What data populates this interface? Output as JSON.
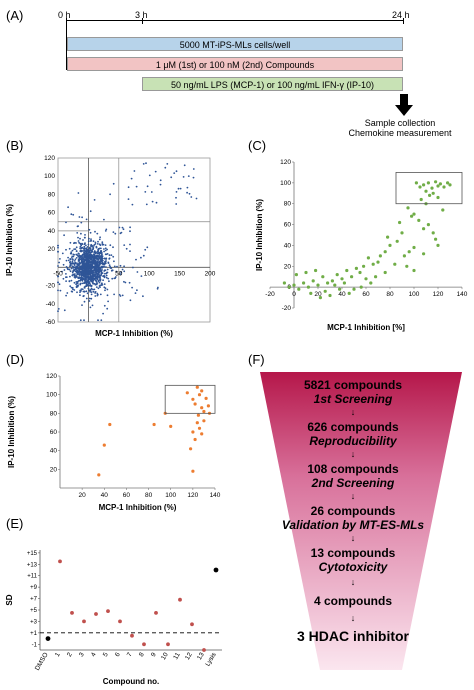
{
  "panels": {
    "A": "(A)",
    "B": "(B)",
    "C": "(C)",
    "D": "(D)",
    "E": "(E)",
    "F": "(F)"
  },
  "timeline": {
    "times": [
      "0 h",
      "3 h",
      "24 h"
    ],
    "bars": [
      {
        "label": "5000 MT-iPS-MLs cells/well",
        "color": "#b7d3ea"
      },
      {
        "label": "1 μM (1st) or 100 nM (2nd) Compounds",
        "color": "#f2c4c4"
      },
      {
        "label": "50 ng/mL LPS (MCP-1) or 100 ng/mL IFN-γ (IP-10)",
        "color": "#c8e2b5"
      }
    ],
    "sample_label_1": "Sample collection",
    "sample_label_2": "Chemokine measurement"
  },
  "chart_data": [
    {
      "panel": "B",
      "type": "scatter",
      "xlabel": "MCP-1 Inhibition (%)",
      "ylabel": "IP-10 Inhibition (%)",
      "xlim": [
        -50,
        200
      ],
      "ylim": [
        -60,
        120
      ],
      "xticks": [
        "-50",
        "50",
        "100",
        "150",
        "200"
      ],
      "yticks": [
        "-60",
        "-40",
        "-20",
        "20",
        "40",
        "60",
        "80",
        "100",
        "120"
      ],
      "color": "#2f5597",
      "note": "dense cloud of ~5821 points centered near (0, 0)"
    },
    {
      "panel": "C",
      "type": "scatter",
      "xlabel": "MCP-1 Inhibition [%]",
      "ylabel": "IP-10 Inhibition (%)",
      "xlim": [
        -20,
        140
      ],
      "ylim": [
        -20,
        120
      ],
      "xticks": [
        "-20",
        "0",
        "20",
        "40",
        "60",
        "80",
        "100",
        "120",
        "140"
      ],
      "yticks": [
        "-20",
        "0",
        "20",
        "40",
        "60",
        "80",
        "100",
        "120"
      ],
      "color": "#70ad47",
      "points": [
        [
          102,
          100
        ],
        [
          105,
          96
        ],
        [
          108,
          98
        ],
        [
          110,
          92
        ],
        [
          112,
          100
        ],
        [
          115,
          95
        ],
        [
          118,
          101
        ],
        [
          120,
          97
        ],
        [
          122,
          99
        ],
        [
          125,
          96
        ],
        [
          128,
          100
        ],
        [
          130,
          98
        ],
        [
          106,
          84
        ],
        [
          110,
          80
        ],
        [
          113,
          88
        ],
        [
          116,
          90
        ],
        [
          120,
          86
        ],
        [
          124,
          74
        ],
        [
          95,
          76
        ],
        [
          98,
          68
        ],
        [
          100,
          70
        ],
        [
          104,
          64
        ],
        [
          108,
          56
        ],
        [
          112,
          60
        ],
        [
          116,
          52
        ],
        [
          118,
          46
        ],
        [
          120,
          40
        ],
        [
          90,
          52
        ],
        [
          86,
          44
        ],
        [
          80,
          40
        ],
        [
          76,
          34
        ],
        [
          72,
          30
        ],
        [
          70,
          24
        ],
        [
          66,
          22
        ],
        [
          62,
          28
        ],
        [
          58,
          20
        ],
        [
          55,
          14
        ],
        [
          52,
          18
        ],
        [
          48,
          10
        ],
        [
          44,
          16
        ],
        [
          40,
          8
        ],
        [
          36,
          12
        ],
        [
          32,
          6
        ],
        [
          28,
          4
        ],
        [
          24,
          10
        ],
        [
          20,
          2
        ],
        [
          16,
          6
        ],
        [
          12,
          0
        ],
        [
          8,
          4
        ],
        [
          4,
          -2
        ],
        [
          0,
          2
        ],
        [
          -4,
          0
        ],
        [
          -8,
          4
        ],
        [
          2,
          12
        ],
        [
          10,
          14
        ],
        [
          18,
          16
        ],
        [
          26,
          -4
        ],
        [
          34,
          2
        ],
        [
          42,
          4
        ],
        [
          50,
          -2
        ],
        [
          60,
          8
        ],
        [
          68,
          10
        ],
        [
          76,
          14
        ],
        [
          84,
          22
        ],
        [
          92,
          30
        ],
        [
          96,
          34
        ],
        [
          100,
          38
        ],
        [
          78,
          48
        ],
        [
          88,
          62
        ],
        [
          94,
          20
        ],
        [
          100,
          16
        ],
        [
          108,
          32
        ],
        [
          64,
          4
        ],
        [
          56,
          0
        ],
        [
          46,
          -6
        ],
        [
          38,
          -2
        ],
        [
          30,
          -8
        ],
        [
          22,
          -10
        ],
        [
          14,
          -6
        ]
      ],
      "highlight_box": {
        "xlim": [
          85,
          140
        ],
        "ylim": [
          80,
          110
        ]
      }
    },
    {
      "panel": "D",
      "type": "scatter",
      "xlabel": "MCP-1 Inhibition (%)",
      "ylabel": "IP-10 Inhibition (%)",
      "xlim": [
        0,
        140
      ],
      "ylim": [
        0,
        120
      ],
      "xticks": [
        "20",
        "40",
        "60",
        "80",
        "100",
        "120",
        "140"
      ],
      "yticks": [
        "20",
        "40",
        "60",
        "80",
        "100",
        "120"
      ],
      "color": "#ed7d31",
      "points": [
        [
          35,
          14
        ],
        [
          40,
          46
        ],
        [
          45,
          68
        ],
        [
          85,
          68
        ],
        [
          95,
          80
        ],
        [
          100,
          66
        ],
        [
          115,
          102
        ],
        [
          120,
          95
        ],
        [
          122,
          90
        ],
        [
          124,
          108
        ],
        [
          126,
          100
        ],
        [
          128,
          86
        ],
        [
          130,
          82
        ],
        [
          132,
          96
        ],
        [
          134,
          88
        ],
        [
          120,
          60
        ],
        [
          122,
          52
        ],
        [
          124,
          70
        ],
        [
          126,
          64
        ],
        [
          128,
          58
        ],
        [
          130,
          72
        ],
        [
          118,
          42
        ],
        [
          120,
          18
        ],
        [
          125,
          78
        ],
        [
          135,
          80
        ],
        [
          128,
          104
        ]
      ],
      "highlight_box": {
        "xlim": [
          95,
          140
        ],
        "ylim": [
          80,
          110
        ]
      }
    },
    {
      "panel": "E",
      "type": "scatter",
      "xlabel": "Compound no.",
      "ylabel": "SD",
      "categories": [
        "DMSO",
        "1",
        "2",
        "3",
        "4",
        "5",
        "6",
        "7",
        "8",
        "9",
        "10",
        "11",
        "12",
        "13",
        "Lysis"
      ],
      "yticks": [
        "-1",
        "+1",
        "+3",
        "+5",
        "+7",
        "+9",
        "+11",
        "+13",
        "+15"
      ],
      "values": [
        0,
        13.5,
        4.5,
        3,
        4.3,
        4.8,
        3,
        0.5,
        -1,
        4.5,
        -1,
        6.8,
        2.5,
        -2,
        12
      ],
      "reference_line": 1,
      "color_compounds": "#c0504d",
      "color_controls": "#000000"
    }
  ],
  "funnel": {
    "steps": [
      {
        "count": "5821 compounds",
        "stage": "1st Screening"
      },
      {
        "count": "626 compounds",
        "stage": "Reproducibility"
      },
      {
        "count": "108 compounds",
        "stage": "2nd Screening"
      },
      {
        "count": "26 compounds",
        "stage": "Validation by MT-ES-MLs"
      },
      {
        "count": "13 compounds",
        "stage": "Cytotoxicity"
      },
      {
        "count": "4 compounds",
        "stage": ""
      }
    ],
    "final": "3 HDAC inhibitor",
    "arrow": "↓"
  }
}
